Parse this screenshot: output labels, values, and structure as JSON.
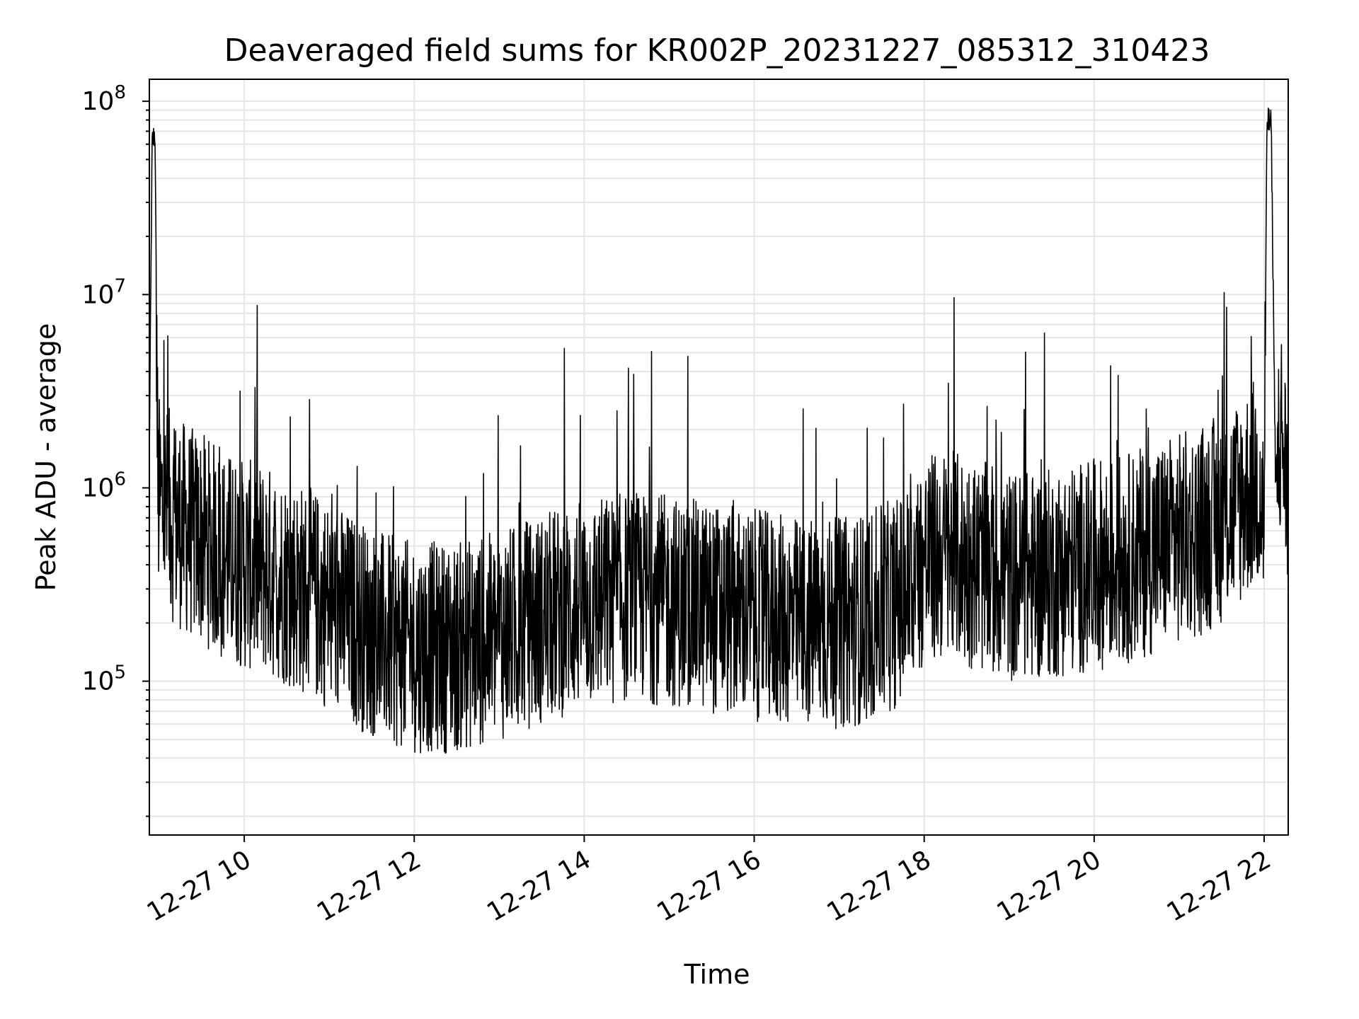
{
  "chart_data": {
    "type": "line",
    "title": "Deaveraged field sums for KR002P_20231227_085312_310423",
    "xlabel": "Time",
    "ylabel": "Peak ADU - average",
    "yscale": "log",
    "ylim": [
      16000,
      130000000
    ],
    "xlim": [
      "2023-12-27 08:53",
      "2023-12-27 22:17"
    ],
    "grid": true,
    "line_color": "#000000",
    "grid_color": "#e6e6e6",
    "xticks": [
      {
        "label": "12-27 10",
        "time": "2023-12-27 10:00"
      },
      {
        "label": "12-27 12",
        "time": "2023-12-27 12:00"
      },
      {
        "label": "12-27 14",
        "time": "2023-12-27 14:00"
      },
      {
        "label": "12-27 16",
        "time": "2023-12-27 16:00"
      },
      {
        "label": "12-27 18",
        "time": "2023-12-27 18:00"
      },
      {
        "label": "12-27 20",
        "time": "2023-12-27 20:00"
      },
      {
        "label": "12-27 22",
        "time": "2023-12-27 22:00"
      }
    ],
    "yticks": [
      {
        "base": "10",
        "exp": "5",
        "value": 100000
      },
      {
        "base": "10",
        "exp": "6",
        "value": 1000000
      },
      {
        "base": "10",
        "exp": "7",
        "value": 10000000
      },
      {
        "base": "10",
        "exp": "8",
        "value": 100000000
      }
    ],
    "series": [
      {
        "name": "",
        "x": [
          "2023-12-27 08:53",
          "2023-12-27 08:55",
          "2023-12-27 08:57",
          "2023-12-27 08:59",
          "2023-12-27 09:02",
          "2023-12-27 09:10",
          "2023-12-27 09:20",
          "2023-12-27 09:30",
          "2023-12-27 09:45",
          "2023-12-27 10:00",
          "2023-12-27 10:15",
          "2023-12-27 10:30",
          "2023-12-27 10:45",
          "2023-12-27 11:00",
          "2023-12-27 11:15",
          "2023-12-27 11:30",
          "2023-12-27 11:45",
          "2023-12-27 12:00",
          "2023-12-27 12:15",
          "2023-12-27 12:30",
          "2023-12-27 12:45",
          "2023-12-27 13:00",
          "2023-12-27 13:15",
          "2023-12-27 13:30",
          "2023-12-27 13:45",
          "2023-12-27 14:00",
          "2023-12-27 14:15",
          "2023-12-27 14:30",
          "2023-12-27 14:45",
          "2023-12-27 15:00",
          "2023-12-27 15:15",
          "2023-12-27 15:30",
          "2023-12-27 15:45",
          "2023-12-27 16:00",
          "2023-12-27 16:15",
          "2023-12-27 16:30",
          "2023-12-27 16:45",
          "2023-12-27 17:00",
          "2023-12-27 17:15",
          "2023-12-27 17:30",
          "2023-12-27 17:45",
          "2023-12-27 18:00",
          "2023-12-27 18:15",
          "2023-12-27 18:30",
          "2023-12-27 18:45",
          "2023-12-27 19:00",
          "2023-12-27 19:15",
          "2023-12-27 19:30",
          "2023-12-27 19:45",
          "2023-12-27 20:00",
          "2023-12-27 20:15",
          "2023-12-27 20:30",
          "2023-12-27 20:45",
          "2023-12-27 21:00",
          "2023-12-27 21:15",
          "2023-12-27 21:30",
          "2023-12-27 21:45",
          "2023-12-27 21:55",
          "2023-12-27 22:00",
          "2023-12-27 22:02",
          "2023-12-27 22:05",
          "2023-12-27 22:08",
          "2023-12-27 22:12",
          "2023-12-27 22:17"
        ],
        "y": [
          1500000,
          60000000,
          70000000,
          900000,
          800000,
          700000,
          600000,
          550000,
          450000,
          400000,
          380000,
          330000,
          290000,
          250000,
          210000,
          180000,
          160000,
          150000,
          150000,
          150000,
          160000,
          170000,
          190000,
          210000,
          230000,
          250000,
          260000,
          270000,
          270000,
          260000,
          250000,
          240000,
          230000,
          220000,
          210000,
          200000,
          200000,
          200000,
          210000,
          230000,
          270000,
          420000,
          450000,
          420000,
          380000,
          350000,
          350000,
          360000,
          380000,
          400000,
          420000,
          450000,
          500000,
          550000,
          600000,
          700000,
          900000,
          1100000,
          700000,
          80000000,
          75000000,
          1200000,
          2000000,
          900000
        ]
      }
    ]
  }
}
